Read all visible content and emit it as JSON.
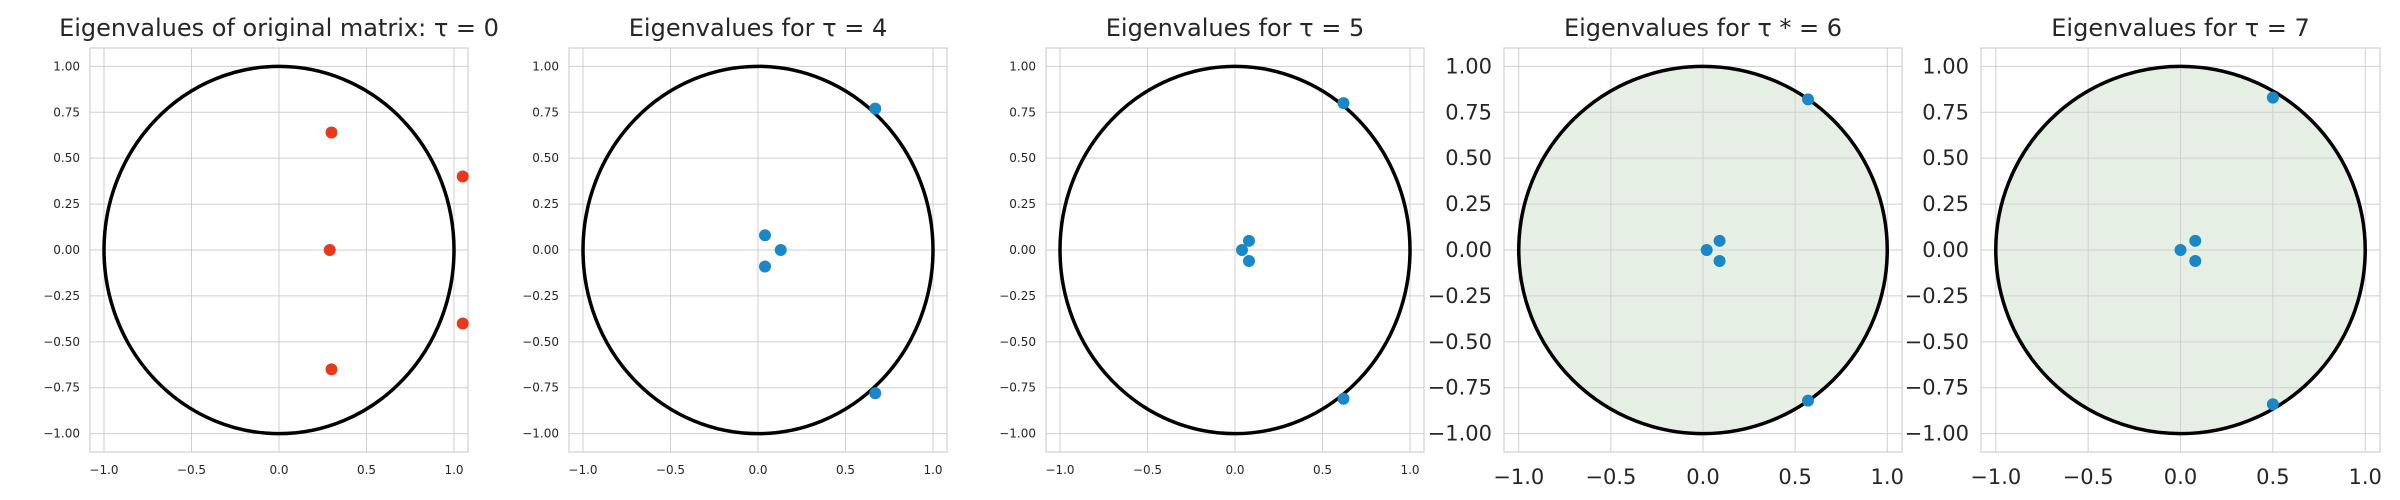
{
  "chart_data": [
    {
      "type": "scatter",
      "title": "Eigenvalues of original matrix: τ = 0",
      "xlim": [
        -1.08,
        1.08
      ],
      "ylim": [
        -1.1,
        1.1
      ],
      "xticks": [
        "−1.0",
        "−0.5",
        "0.0",
        "0.5",
        "1.0"
      ],
      "yticks": [
        "1.00",
        "0.75",
        "0.50",
        "0.25",
        "0.00",
        "−0.25",
        "−0.50",
        "−0.75",
        "−1.00"
      ],
      "tick_size": "small",
      "grid": true,
      "unit_circle": true,
      "shaded_disk": false,
      "point_color": "#e8391b",
      "points": [
        [
          0.3,
          0.64
        ],
        [
          1.05,
          0.4
        ],
        [
          0.29,
          0.0
        ],
        [
          1.05,
          -0.4
        ],
        [
          0.3,
          -0.65
        ]
      ]
    },
    {
      "type": "scatter",
      "title": "Eigenvalues for τ = 4",
      "xlim": [
        -1.08,
        1.08
      ],
      "ylim": [
        -1.1,
        1.1
      ],
      "xticks": [
        "−1.0",
        "−0.5",
        "0.0",
        "0.5",
        "1.0"
      ],
      "yticks": [
        "1.00",
        "0.75",
        "0.50",
        "0.25",
        "0.00",
        "−0.25",
        "−0.50",
        "−0.75",
        "−1.00"
      ],
      "tick_size": "small",
      "grid": true,
      "unit_circle": true,
      "shaded_disk": false,
      "point_color": "#1a87c7",
      "points": [
        [
          0.67,
          0.77
        ],
        [
          0.04,
          0.08
        ],
        [
          0.13,
          0.0
        ],
        [
          0.04,
          -0.09
        ],
        [
          0.67,
          -0.78
        ]
      ]
    },
    {
      "type": "scatter",
      "title": "Eigenvalues for τ = 5",
      "xlim": [
        -1.08,
        1.08
      ],
      "ylim": [
        -1.1,
        1.1
      ],
      "xticks": [
        "−1.0",
        "−0.5",
        "0.0",
        "0.5",
        "1.0"
      ],
      "yticks": [
        "1.00",
        "0.75",
        "0.50",
        "0.25",
        "0.00",
        "−0.25",
        "−0.50",
        "−0.75",
        "−1.00"
      ],
      "tick_size": "small",
      "grid": true,
      "unit_circle": true,
      "shaded_disk": false,
      "point_color": "#1a87c7",
      "points": [
        [
          0.62,
          0.8
        ],
        [
          0.08,
          0.05
        ],
        [
          0.04,
          0.0
        ],
        [
          0.08,
          -0.06
        ],
        [
          0.62,
          -0.81
        ]
      ]
    },
    {
      "type": "scatter",
      "title": "Eigenvalues for τ * = 6",
      "xlim": [
        -1.08,
        1.08
      ],
      "ylim": [
        -1.1,
        1.1
      ],
      "xticks": [
        "−1.0",
        "−0.5",
        "0.0",
        "0.5",
        "1.0"
      ],
      "yticks": [
        "1.00",
        "0.75",
        "0.50",
        "0.25",
        "0.00",
        "−0.25",
        "−0.50",
        "−0.75",
        "−1.00"
      ],
      "tick_size": "large",
      "grid": true,
      "unit_circle": true,
      "shaded_disk": true,
      "disk_color": "#e6efe3",
      "point_color": "#1a87c7",
      "points": [
        [
          0.57,
          0.82
        ],
        [
          0.09,
          0.05
        ],
        [
          0.02,
          0.0
        ],
        [
          0.09,
          -0.06
        ],
        [
          0.57,
          -0.82
        ]
      ]
    },
    {
      "type": "scatter",
      "title": "Eigenvalues for τ = 7",
      "xlim": [
        -1.08,
        1.08
      ],
      "ylim": [
        -1.1,
        1.1
      ],
      "xticks": [
        "−1.0",
        "−0.5",
        "0.0",
        "0.5",
        "1.0"
      ],
      "yticks": [
        "1.00",
        "0.75",
        "0.50",
        "0.25",
        "0.00",
        "−0.25",
        "−0.50",
        "−0.75",
        "−1.00"
      ],
      "tick_size": "large",
      "grid": true,
      "unit_circle": true,
      "shaded_disk": true,
      "disk_color": "#e6efe3",
      "point_color": "#1a87c7",
      "points": [
        [
          0.5,
          0.83
        ],
        [
          0.08,
          0.05
        ],
        [
          0.0,
          0.0
        ],
        [
          0.08,
          -0.06
        ],
        [
          0.5,
          -0.84
        ]
      ]
    }
  ]
}
